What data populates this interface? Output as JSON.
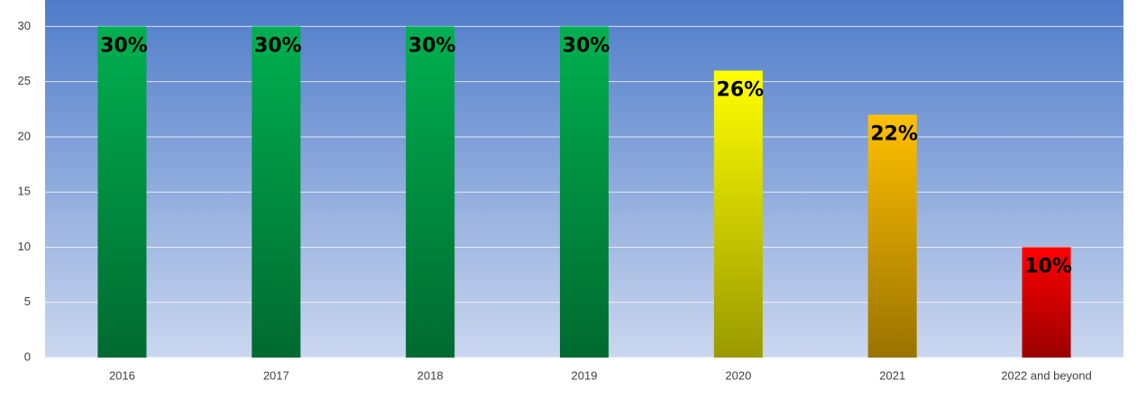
{
  "chart_data": {
    "type": "bar",
    "categories": [
      "2016",
      "2017",
      "2018",
      "2019",
      "2020",
      "2021",
      "2022 and beyond"
    ],
    "values": [
      30,
      30,
      30,
      30,
      26,
      22,
      10
    ],
    "value_labels": [
      "30%",
      "30%",
      "30%",
      "30%",
      "26%",
      "22%",
      "10%"
    ],
    "colors": [
      "#00b050",
      "#00b050",
      "#00b050",
      "#00b050",
      "#ffff00",
      "#ffc000",
      "#ff0000"
    ],
    "ylim": [
      0,
      32.4
    ],
    "yticks": [
      0,
      5,
      10,
      15,
      20,
      25,
      30
    ],
    "grid": true
  }
}
